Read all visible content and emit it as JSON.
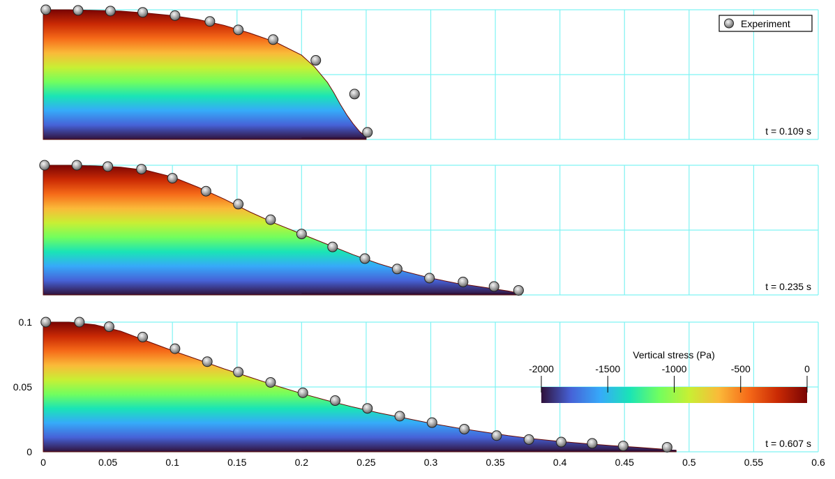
{
  "chart_data": {
    "type": "scatter",
    "legend": {
      "label": "Experiment",
      "placement": "top-right"
    },
    "colorbar": {
      "title": "Vertical stress (Pa)",
      "ticks": [
        -2000,
        -1500,
        -1000,
        -500,
        0
      ],
      "tick_labels": [
        "-2000",
        "-1500",
        "-1000",
        "-500",
        "0"
      ],
      "range": [
        -2000,
        0
      ],
      "colors": [
        "#30123b",
        "#4662d7",
        "#36aaf9",
        "#1ae4b6",
        "#72fe5e",
        "#c8ef34",
        "#faba39",
        "#f66b19",
        "#ca2a04",
        "#7a0403"
      ]
    },
    "xlim": [
      0,
      0.6
    ],
    "ylim": [
      0,
      0.1
    ],
    "x_ticks": [
      0,
      0.05,
      0.1,
      0.15,
      0.2,
      0.25,
      0.3,
      0.35,
      0.4,
      0.45,
      0.5,
      0.55,
      0.6
    ],
    "x_tick_labels": [
      "0",
      "0.05",
      "0.1",
      "0.15",
      "0.2",
      "0.25",
      "0.3",
      "0.35",
      "0.4",
      "0.45",
      "0.5",
      "0.55",
      "0.6"
    ],
    "y_ticks": [
      0,
      0.05,
      0.1
    ],
    "y_tick_labels": [
      "0",
      "0.05",
      "0.1"
    ],
    "grid": true,
    "grid_color": "#7ff3f3",
    "panels": [
      {
        "label": "t = 0.109 s",
        "experiment": {
          "x": [
            0.002,
            0.027,
            0.052,
            0.077,
            0.102,
            0.129,
            0.151,
            0.178,
            0.211,
            0.241,
            0.251
          ],
          "y": [
            0.1,
            0.0995,
            0.099,
            0.098,
            0.0955,
            0.091,
            0.0845,
            0.077,
            0.061,
            0.035,
            0.0055
          ]
        },
        "profile": {
          "x": [
            0,
            0.02,
            0.04,
            0.06,
            0.08,
            0.1,
            0.12,
            0.14,
            0.16,
            0.18,
            0.2,
            0.21,
            0.22,
            0.225,
            0.23,
            0.235,
            0.24,
            0.245,
            0.25
          ],
          "y": [
            0.1,
            0.1,
            0.0995,
            0.099,
            0.0975,
            0.0955,
            0.0925,
            0.088,
            0.082,
            0.075,
            0.065,
            0.056,
            0.044,
            0.036,
            0.027,
            0.019,
            0.012,
            0.006,
            0.002
          ]
        }
      },
      {
        "label": "t = 0.235 s",
        "experiment": {
          "x": [
            0.001,
            0.026,
            0.05,
            0.076,
            0.1,
            0.126,
            0.151,
            0.176,
            0.2,
            0.224,
            0.249,
            0.274,
            0.299,
            0.325,
            0.349,
            0.368
          ],
          "y": [
            0.1,
            0.1,
            0.099,
            0.097,
            0.09,
            0.08,
            0.07,
            0.058,
            0.047,
            0.037,
            0.028,
            0.02,
            0.013,
            0.01,
            0.0065,
            0.0035
          ]
        },
        "profile": {
          "x": [
            0,
            0.02,
            0.04,
            0.06,
            0.08,
            0.1,
            0.12,
            0.14,
            0.16,
            0.18,
            0.2,
            0.22,
            0.24,
            0.26,
            0.28,
            0.3,
            0.32,
            0.34,
            0.36,
            0.37
          ],
          "y": [
            0.1,
            0.1,
            0.0995,
            0.0985,
            0.096,
            0.091,
            0.083,
            0.074,
            0.064,
            0.055,
            0.047,
            0.039,
            0.031,
            0.024,
            0.018,
            0.013,
            0.009,
            0.006,
            0.003,
            0.001
          ]
        }
      },
      {
        "label": "t = 0.607 s",
        "experiment": {
          "x": [
            0.002,
            0.028,
            0.051,
            0.077,
            0.102,
            0.127,
            0.151,
            0.176,
            0.201,
            0.226,
            0.251,
            0.276,
            0.301,
            0.326,
            0.351,
            0.376,
            0.401,
            0.425,
            0.449,
            0.483
          ],
          "y": [
            0.1,
            0.1,
            0.0965,
            0.0885,
            0.0795,
            0.0695,
            0.0615,
            0.0535,
            0.0455,
            0.0395,
            0.0335,
            0.0275,
            0.0225,
            0.0175,
            0.0125,
            0.0095,
            0.0075,
            0.0065,
            0.0045,
            0.0035
          ]
        },
        "profile": {
          "x": [
            0,
            0.02,
            0.04,
            0.06,
            0.08,
            0.1,
            0.12,
            0.14,
            0.16,
            0.18,
            0.2,
            0.22,
            0.24,
            0.26,
            0.28,
            0.3,
            0.32,
            0.34,
            0.36,
            0.38,
            0.4,
            0.42,
            0.44,
            0.46,
            0.48,
            0.49
          ],
          "y": [
            0.1,
            0.1,
            0.098,
            0.093,
            0.0855,
            0.078,
            0.071,
            0.064,
            0.0575,
            0.051,
            0.045,
            0.0395,
            0.0345,
            0.03,
            0.026,
            0.022,
            0.0185,
            0.0155,
            0.0125,
            0.01,
            0.008,
            0.0063,
            0.0048,
            0.0035,
            0.002,
            0.001
          ]
        }
      }
    ]
  }
}
